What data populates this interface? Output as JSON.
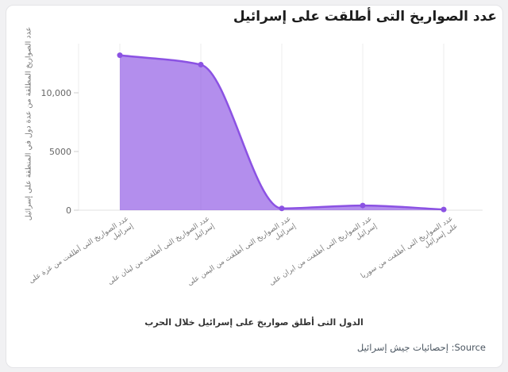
{
  "page": {
    "background_color": "#f1f1f3",
    "card_background": "#ffffff",
    "card_border_color": "#e4e4e7"
  },
  "source": {
    "label": "Source: إحصائيات جيش إسرائيل"
  },
  "chart_data": {
    "type": "area",
    "title": "عدد الصواريخ التى أطلقت على إسرائيل",
    "xlabel": "الدول التى أطلق صواريخ على إسرائيل خلال الحرب",
    "ylabel": "عدد الصواريخ المطلقة من عدة دول في المنطقة على إسرائيل",
    "categories": [
      "عدد الصواريخ التى أطلقت من غزة على إسرائيل",
      "عدد الصواريخ التى أطلقت من لبنان على إسرائيل",
      "عدد الصواريخ التى أطلقت من اليمن على إسرائيل",
      "عدد الصواريخ التى أطلقت من ايران على إسرائيل",
      "عدد الصواريخ التى أطلقت من سوريا على إسرائيل"
    ],
    "category_display_lines": [
      [
        "عدد الصواريخ التى أطلقت من غزة على",
        "إسرائيل"
      ],
      [
        "عدد الصواريخ التى أطلقت من لبنان على",
        "إسرائيل"
      ],
      [
        "عدد الصواريخ التى أطلقت من اليمن على",
        "إسرائيل"
      ],
      [
        "عدد الصواريخ التى أطلقت من ايران على",
        "إسرائيل"
      ],
      [
        "عدد الصواريخ التى أطلقت من سوريا",
        "على إسرائيل"
      ]
    ],
    "values": [
      13200,
      12400,
      150,
      400,
      60
    ],
    "y_ticks": [
      {
        "value": 0,
        "label": "0"
      },
      {
        "value": 5000,
        "label": "5000"
      },
      {
        "value": 10000,
        "label": "10,000"
      }
    ],
    "ylim": [
      0,
      14200
    ],
    "grid": "vertical-only",
    "legend": "none",
    "line_smoothing": "monotone",
    "colors": {
      "line": "#8b52e3",
      "fill": "rgba(139,82,227,0.65)",
      "marker": "#8b52e3",
      "grid": "#ededed",
      "axis": "#e2e2e2",
      "tick_mark": "#cccccc",
      "tick_text": "#666666",
      "category_text": "#7a7a7a"
    }
  }
}
